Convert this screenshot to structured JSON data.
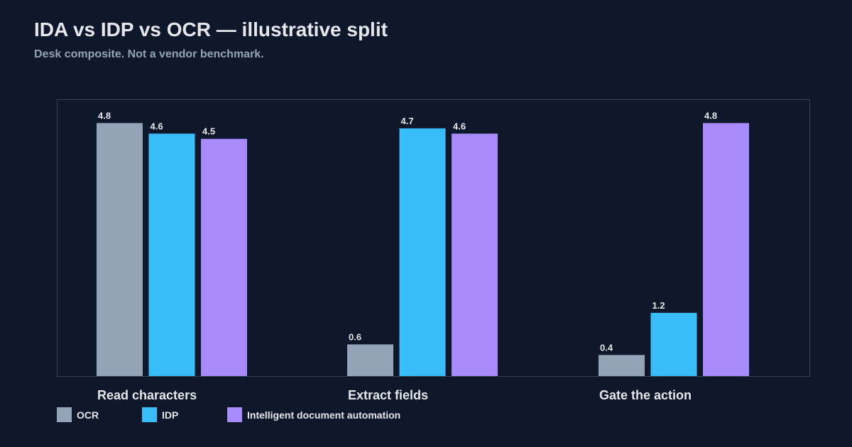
{
  "colors": {
    "background": "#0f172a",
    "plot_border": "#334155",
    "text": "#e5e7eb",
    "muted": "#94a3b8"
  },
  "chart_data": {
    "type": "bar",
    "title": "IDA vs IDP vs OCR — illustrative split",
    "subtitle": "Desk composite. Not a vendor benchmark.",
    "categories": [
      "Read characters",
      "Extract fields",
      "Gate the action"
    ],
    "series": [
      {
        "name": "OCR",
        "color": "#94a3b8",
        "values": [
          4.8,
          0.6,
          0.4
        ]
      },
      {
        "name": "IDP",
        "color": "#38bdf8",
        "values": [
          4.6,
          4.7,
          1.2
        ]
      },
      {
        "name": "Intelligent document automation",
        "color": "#a78bfa",
        "values": [
          4.5,
          4.6,
          4.8
        ]
      }
    ],
    "ylim": [
      0,
      5.25
    ],
    "grid": false,
    "legend_position": "bottom-left",
    "show_data_labels": true
  }
}
